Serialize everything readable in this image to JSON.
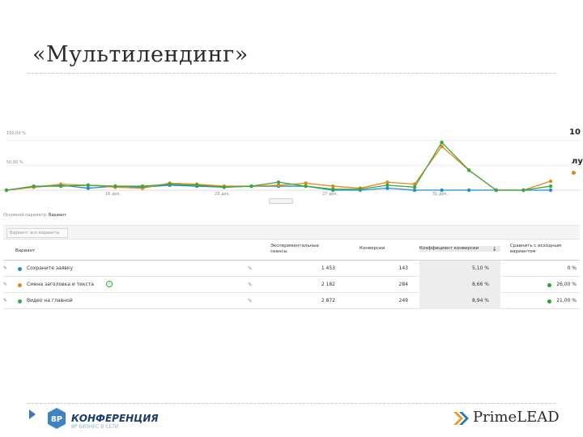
{
  "slide": {
    "title": "«Мультилендинг»"
  },
  "chart": {
    "y_ticks": [
      "100,00 %",
      "50,00 %"
    ],
    "x_ticks": [
      "16 дек.",
      "23 дек.",
      "27 дек.",
      "31 дек."
    ],
    "side_labels": [
      "10",
      "лу"
    ],
    "colors": {
      "blue": "#1f8dd6",
      "orange": "#e08a1e",
      "green": "#3aa83a"
    }
  },
  "chart_data": {
    "type": "line",
    "x": [
      1,
      2,
      3,
      4,
      5,
      6,
      7,
      8,
      9,
      10,
      11,
      12,
      13,
      14,
      15,
      16,
      17,
      18,
      19,
      20,
      21
    ],
    "series": [
      {
        "name": "Сохраните заявку",
        "color": "#1f8dd6",
        "values": [
          0,
          6,
          10,
          4,
          8,
          6,
          10,
          8,
          6,
          8,
          8,
          8,
          0,
          0,
          4,
          0,
          0,
          0,
          0,
          0,
          0
        ]
      },
      {
        "name": "Смена заголовка и текста",
        "color": "#e08a1e",
        "values": [
          0,
          6,
          12,
          10,
          6,
          4,
          14,
          12,
          8,
          8,
          10,
          14,
          8,
          4,
          16,
          12,
          88,
          40,
          0,
          0,
          18
        ]
      },
      {
        "name": "Видео на главной",
        "color": "#3aa83a",
        "values": [
          0,
          8,
          8,
          10,
          8,
          8,
          12,
          10,
          6,
          8,
          16,
          8,
          2,
          2,
          10,
          6,
          96,
          40,
          0,
          0,
          8
        ]
      }
    ],
    "ylim": [
      0,
      130
    ]
  },
  "controls": {
    "primary_dimension_label": "Основной параметр:",
    "primary_dimension_value": "Вариант",
    "filter_placeholder": "Вариант: все варианты"
  },
  "table": {
    "headers": {
      "variant": "Вариант",
      "sessions": "Экспериментальные сеансы",
      "conversions": "Конверсии",
      "conv_rate": "Коэффициент конверсии",
      "compare": "Сравнить с исходным вариантом"
    },
    "rows": [
      {
        "name": "Сохраните заявку",
        "sessions": "1 453",
        "conversions": "143",
        "rate": "5,10 %",
        "compare": "0 %",
        "color": "#1f8dd6",
        "compare_dot": false
      },
      {
        "name": "Смена заголовка и текста",
        "sessions": "2 182",
        "conversions": "284",
        "rate": "8,66 %",
        "compare": "26,00 %",
        "color": "#e08a1e",
        "compare_dot": true
      },
      {
        "name": "Видео на главной",
        "sessions": "2 872",
        "conversions": "249",
        "rate": "8,94 %",
        "compare": "21,00 %",
        "color": "#3aa83a",
        "compare_dot": true
      }
    ]
  },
  "footer": {
    "badge": "8P",
    "conference": "КОНФЕРЕНЦИЯ",
    "conference_sub": "8P БИЗНЕС В СЕТИ",
    "brand": "PrimeLEAD"
  }
}
